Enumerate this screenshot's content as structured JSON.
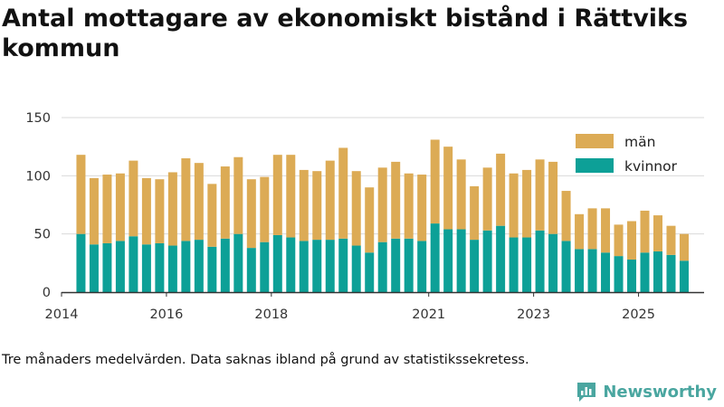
{
  "title": "Antal mottagare av ekonomiskt bistånd i Rättviks kommun",
  "note": "Tre månaders medelvärden. Data saknas ibland på grund av statistikssekretess.",
  "brand": "Newsworthy",
  "colors": {
    "man": "#dcab55",
    "kvinnor": "#0da097",
    "grid": "#d9d9d9",
    "axis": "#333333"
  },
  "chart_data": {
    "type": "bar",
    "stacked": true,
    "title": "Antal mottagare av ekonomiskt bistånd i Rättviks kommun",
    "xlabel": "",
    "ylabel": "",
    "ylim": [
      0,
      150
    ],
    "xlim": [
      2014.0,
      2026.25
    ],
    "yticks": [
      0,
      50,
      100,
      150
    ],
    "xticks": [
      2014,
      2016,
      2018,
      2021,
      2023,
      2025
    ],
    "legend_position": "top-right",
    "x": [
      2014.37,
      2014.62,
      2014.87,
      2015.12,
      2015.37,
      2015.62,
      2015.87,
      2016.12,
      2016.37,
      2016.62,
      2016.87,
      2017.12,
      2017.37,
      2017.62,
      2017.87,
      2018.12,
      2018.37,
      2018.62,
      2018.87,
      2019.12,
      2019.37,
      2019.62,
      2019.87,
      2020.12,
      2020.37,
      2020.62,
      2020.87,
      2021.12,
      2021.37,
      2021.62,
      2021.87,
      2022.12,
      2022.37,
      2022.62,
      2022.87,
      2023.12,
      2023.37,
      2023.62,
      2023.87,
      2024.12,
      2024.37,
      2024.62,
      2024.87,
      2025.12,
      2025.37,
      2025.62,
      2025.87
    ],
    "series": [
      {
        "name": "kvinnor",
        "values": [
          50,
          41,
          42,
          44,
          48,
          41,
          42,
          40,
          44,
          45,
          39,
          46,
          50,
          38,
          43,
          49,
          47,
          44,
          45,
          45,
          46,
          40,
          34,
          43,
          46,
          46,
          44,
          59,
          54,
          54,
          45,
          53,
          57,
          47,
          47,
          53,
          50,
          44,
          37,
          37,
          34,
          31,
          28,
          34,
          35,
          32,
          27
        ]
      },
      {
        "name": "män",
        "values": [
          68,
          57,
          59,
          58,
          65,
          57,
          55,
          63,
          71,
          66,
          54,
          62,
          66,
          59,
          56,
          69,
          71,
          61,
          59,
          68,
          78,
          64,
          56,
          64,
          66,
          56,
          57,
          72,
          71,
          60,
          46,
          54,
          62,
          55,
          58,
          61,
          62,
          43,
          30,
          35,
          38,
          27,
          33,
          36,
          31,
          25,
          23
        ]
      }
    ]
  }
}
